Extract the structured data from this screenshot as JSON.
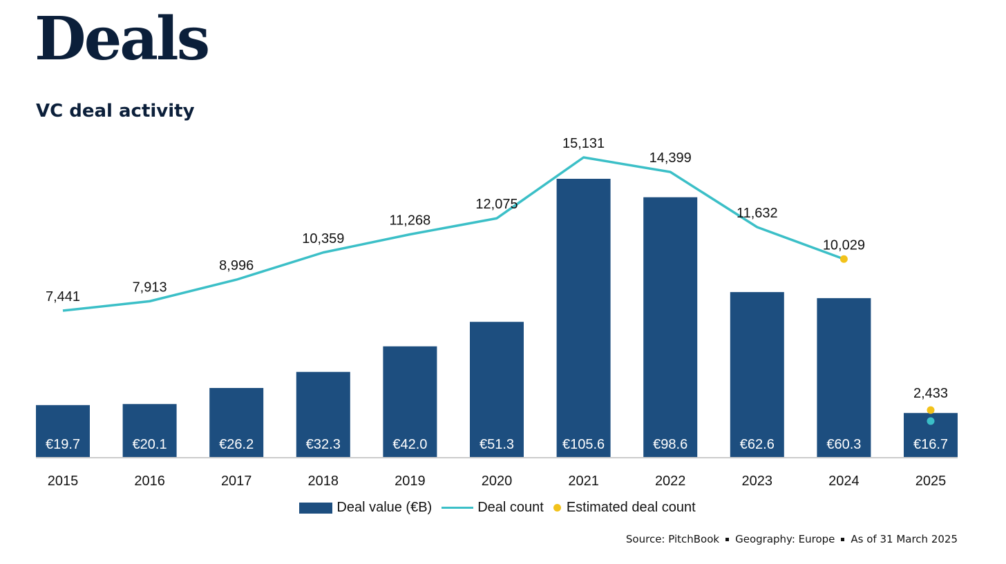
{
  "header": {
    "title": "Deals",
    "subtitle": "VC deal activity"
  },
  "chart_data": {
    "type": "bar",
    "categories": [
      "2015",
      "2016",
      "2017",
      "2018",
      "2019",
      "2020",
      "2021",
      "2022",
      "2023",
      "2024",
      "2025"
    ],
    "series": [
      {
        "name": "Deal value (€B)",
        "type": "bar",
        "values": [
          19.7,
          20.1,
          26.2,
          32.3,
          42.0,
          51.3,
          105.6,
          98.6,
          62.6,
          60.3,
          16.7
        ],
        "labels": [
          "€19.7",
          "€20.1",
          "€26.2",
          "€32.3",
          "€42.0",
          "€51.3",
          "€105.6",
          "€98.6",
          "€62.6",
          "€60.3",
          "€16.7"
        ]
      },
      {
        "name": "Deal count",
        "type": "line",
        "values": [
          7441,
          7913,
          8996,
          10359,
          11268,
          12075,
          15131,
          14399,
          11632,
          10029,
          null
        ],
        "labels": [
          "7,441",
          "7,913",
          "8,996",
          "10,359",
          "11,268",
          "12,075",
          "15,131",
          "14,399",
          "11,632",
          "10,029",
          ""
        ],
        "single_point": {
          "category": "2025",
          "value": 2000
        }
      },
      {
        "name": "Estimated deal count",
        "type": "scatter",
        "points": [
          {
            "category": "2024",
            "value": 10029,
            "label": ""
          },
          {
            "category": "2025",
            "value": 2433,
            "label": "2,433"
          }
        ]
      }
    ],
    "bar_value_range": [
      0,
      105.6
    ],
    "count_range": [
      0,
      15131
    ],
    "grid": false,
    "legend_position": "bottom"
  },
  "colors": {
    "bar": "#1d4e7f",
    "line": "#3bbfc7",
    "estimate": "#f2c21b",
    "axis": "#bbbbbb"
  },
  "source": {
    "source_label": "Source: PitchBook",
    "geography": "Geography: Europe",
    "as_of": "As of 31 March 2025"
  }
}
